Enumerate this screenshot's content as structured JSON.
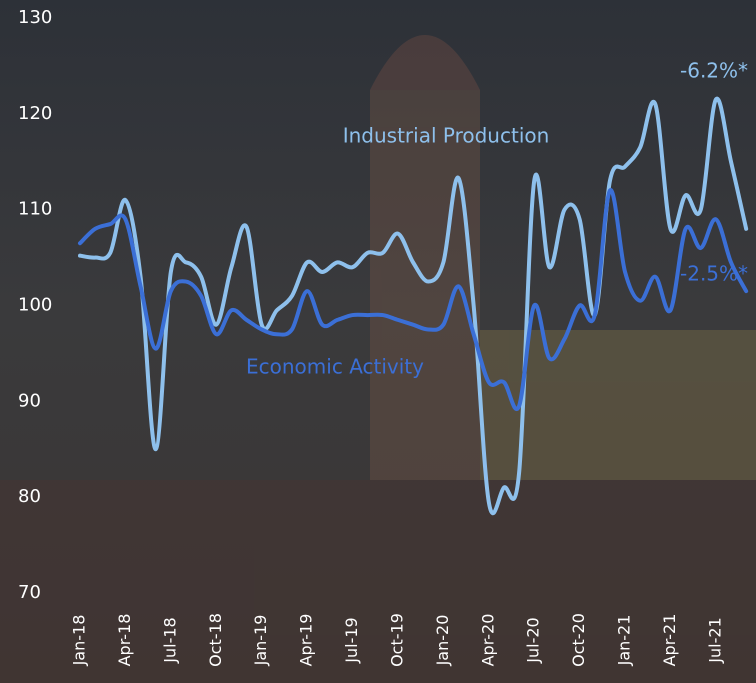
{
  "chart_data": {
    "type": "line",
    "categories": [
      "Jan-18",
      null,
      null,
      "Apr-18",
      null,
      null,
      "Jul-18",
      null,
      null,
      "Oct-18",
      null,
      null,
      "Jan-19",
      null,
      null,
      "Apr-19",
      null,
      null,
      "Jul-19",
      null,
      null,
      "Oct-19",
      null,
      null,
      "Jan-20",
      null,
      null,
      "Apr-20",
      null,
      null,
      "Jul-20",
      null,
      null,
      "Oct-20",
      null,
      null,
      "Jan-21",
      null,
      null,
      "Apr-21",
      null,
      null,
      "Jul-21",
      null,
      null
    ],
    "series": [
      {
        "name": "Industrial Production",
        "color": "#8ec0ec",
        "values": [
          105.2,
          105.0,
          105.5,
          111,
          103,
          85,
          103.5,
          104.5,
          103,
          98,
          104,
          108.2,
          98,
          99.5,
          101,
          104.5,
          103.5,
          104.5,
          104,
          105.5,
          105.5,
          107.5,
          104.5,
          102.5,
          104.5,
          113.3,
          100,
          79.5,
          81,
          82.5,
          113,
          104,
          110,
          109,
          99,
          113,
          114.5,
          116.5,
          121,
          108,
          111.5,
          110,
          121.5,
          115,
          108
        ]
      },
      {
        "name": "Economic Activity",
        "color": "#3b6fd6",
        "values": [
          106.5,
          108,
          108.5,
          109,
          102,
          95.5,
          101.5,
          102.5,
          101,
          97,
          99.5,
          98.5,
          97.5,
          97,
          97.5,
          101.5,
          98,
          98.5,
          99,
          99,
          99,
          98.5,
          98,
          97.5,
          98,
          102,
          97,
          92,
          92,
          89.5,
          100,
          94.5,
          96.5,
          100,
          99,
          112,
          103.5,
          100.5,
          103,
          99.5,
          108,
          106,
          109,
          104.5,
          101.5
        ]
      }
    ],
    "annotations": [
      "Industrial Production",
      "Economic Activity",
      "-6.2%*",
      "-2.5%*"
    ],
    "ylim": [
      70,
      130
    ],
    "yticks": [
      70,
      80,
      90,
      100,
      110,
      120,
      130
    ],
    "grid": false
  }
}
